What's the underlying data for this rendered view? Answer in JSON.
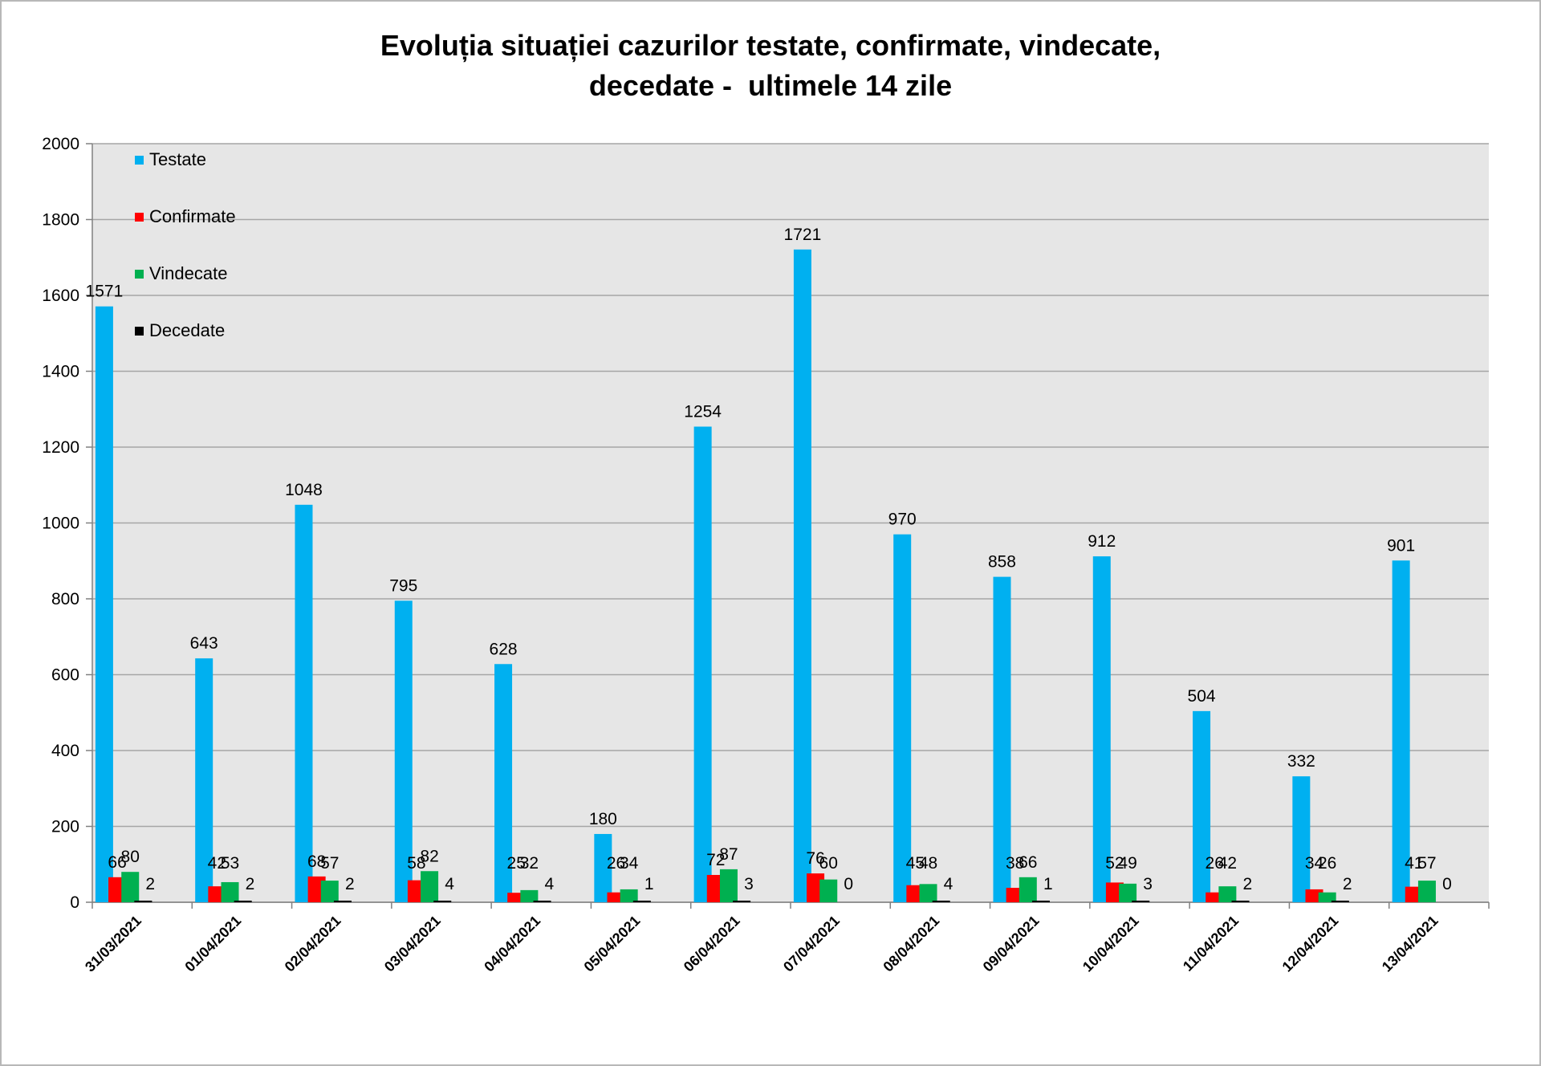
{
  "chart_data": {
    "type": "bar",
    "title_lines": [
      "Evoluția situației cazurilor testate, confirmate, vindecate,",
      "decedate -  ultimele 14 zile"
    ],
    "categories": [
      "31/03/2021",
      "01/04/2021",
      "02/04/2021",
      "03/04/2021",
      "04/04/2021",
      "05/04/2021",
      "06/04/2021",
      "07/04/2021",
      "08/04/2021",
      "09/04/2021",
      "10/04/2021",
      "11/04/2021",
      "12/04/2021",
      "13/04/2021"
    ],
    "series": [
      {
        "name": "Testate",
        "color": "#00b0f0",
        "values": [
          1571,
          643,
          1048,
          795,
          628,
          180,
          1254,
          1721,
          970,
          858,
          912,
          504,
          332,
          901
        ]
      },
      {
        "name": "Confirmate",
        "color": "#ff0000",
        "values": [
          66,
          42,
          68,
          58,
          25,
          26,
          72,
          76,
          45,
          38,
          52,
          26,
          34,
          41
        ]
      },
      {
        "name": "Vindecate",
        "color": "#00b050",
        "values": [
          80,
          53,
          57,
          82,
          32,
          34,
          87,
          60,
          48,
          66,
          49,
          42,
          26,
          57
        ]
      },
      {
        "name": "Decedate",
        "color": "#000000",
        "values": [
          2,
          2,
          2,
          4,
          4,
          1,
          3,
          0,
          4,
          1,
          3,
          2,
          2,
          0
        ]
      }
    ],
    "ylim": [
      0,
      2000
    ],
    "yticks": [
      0,
      200,
      400,
      600,
      800,
      1000,
      1200,
      1400,
      1600,
      1800,
      2000
    ],
    "grid": true,
    "legend_position": "top-left inside plot",
    "plot_background": "#e6e6e6",
    "gridline_color": "#a6a6a6"
  }
}
